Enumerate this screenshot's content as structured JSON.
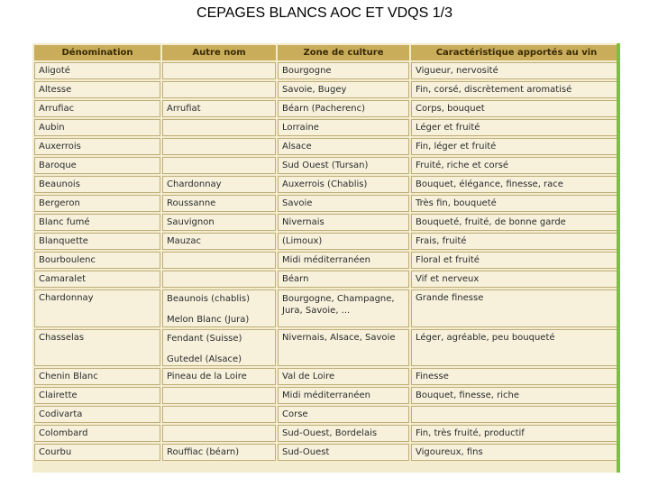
{
  "title": "CEPAGES BLANCS AOC ET VDQS 1/3",
  "headers": [
    "Dénomination",
    "Autre nom",
    "Zone de culture",
    "Caractéristique apportés au vin"
  ],
  "rows": [
    {
      "name": "Aligoté",
      "other": "",
      "zone": "Bourgogne",
      "traits": "Vigueur, nervosité"
    },
    {
      "name": "Altesse",
      "other": "",
      "zone": "Savoie, Bugey",
      "traits": "Fin, corsé, discrètement aromatisé"
    },
    {
      "name": "Arrufiac",
      "other": "Arrufiat",
      "zone": "Béarn (Pacherenc)",
      "traits": "Corps, bouquet"
    },
    {
      "name": "Aubin",
      "other": "",
      "zone": "Lorraine",
      "traits": "Léger et fruité"
    },
    {
      "name": "Auxerrois",
      "other": "",
      "zone": "Alsace",
      "traits": "Fin, léger et fruité"
    },
    {
      "name": "Baroque",
      "other": "",
      "zone": "Sud Ouest (Tursan)",
      "traits": "Fruité, riche et corsé"
    },
    {
      "name": "Beaunois",
      "other": "Chardonnay",
      "zone": "Auxerrois (Chablis)",
      "traits": "Bouquet, élégance, finesse, race"
    },
    {
      "name": "Bergeron",
      "other": "Roussanne",
      "zone": "Savoie",
      "traits": "Très fin, bouqueté"
    },
    {
      "name": "Blanc fumé",
      "other": "Sauvignon",
      "zone": "Nivernais",
      "traits": "Bouqueté, fruité, de bonne garde"
    },
    {
      "name": "Blanquette",
      "other": "Mauzac",
      "zone": "(Limoux)",
      "traits": "Frais, fruité"
    },
    {
      "name": "Bourboulenc",
      "other": "",
      "zone": "Midi méditerranéen",
      "traits": "Floral et fruité"
    },
    {
      "name": "Camaralet",
      "other": "",
      "zone": "Béarn",
      "traits": "Vif et nerveux"
    },
    {
      "name": "Chardonnay",
      "other": "Beaunois (chablis)",
      "other2": "Melon Blanc (Jura)",
      "zone": "Bourgogne, Champagne,",
      "zone2": "Jura, Savoie, ...",
      "traits": "Grande finesse"
    },
    {
      "name": "Chasselas",
      "other": "Fendant (Suisse)",
      "other2": "Gutedel (Alsace)",
      "zone": "Nivernais, Alsace, Savoie",
      "traits": "Léger, agréable, peu bouqueté"
    },
    {
      "name": "Chenin Blanc",
      "other": "Pineau de la Loire",
      "zone": "Val de Loire",
      "traits": "Finesse"
    },
    {
      "name": "Clairette",
      "other": "",
      "zone": "Midi méditerranéen",
      "traits": "Bouquet, finesse, riche"
    },
    {
      "name": "Codivarta",
      "other": "",
      "zone": "Corse",
      "traits": ""
    },
    {
      "name": "Colombard",
      "other": "",
      "zone": "Sud-Ouest, Bordelais",
      "traits": "Fin, très fruité, productif"
    },
    {
      "name": "Courbu",
      "other": "Rouffiac (béarn)",
      "zone": "Sud-Ouest",
      "traits": "Vigoureux, fins"
    }
  ]
}
